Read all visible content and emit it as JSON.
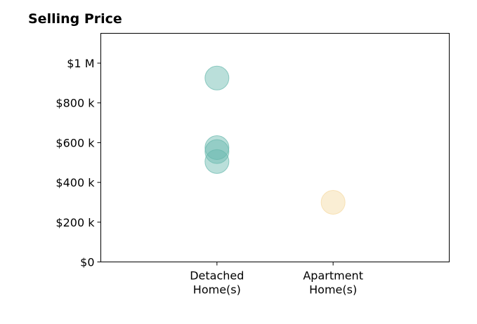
{
  "chart_data": {
    "type": "scatter",
    "title": "Selling Price",
    "xlabel": "",
    "ylabel": "",
    "categories": [
      [
        "Detached",
        "Home(s)"
      ],
      [
        "Apartment",
        "Home(s)"
      ]
    ],
    "ylim": [
      0,
      1150000
    ],
    "yticks": [
      {
        "value": 0,
        "label": "$0"
      },
      {
        "value": 200000,
        "label": "$200 k"
      },
      {
        "value": 400000,
        "label": "$400 k"
      },
      {
        "value": 600000,
        "label": "$600 k"
      },
      {
        "value": 800000,
        "label": "$800 k"
      },
      {
        "value": 1000000,
        "label": "$1 M"
      }
    ],
    "series": [
      {
        "color": "#66b8ac",
        "category_index": 0,
        "values": [
          925000,
          575000,
          555000,
          505000
        ]
      },
      {
        "color": "#f5d9a0",
        "category_index": 1,
        "values": [
          300000
        ]
      }
    ],
    "grid": false,
    "legend": "none"
  }
}
